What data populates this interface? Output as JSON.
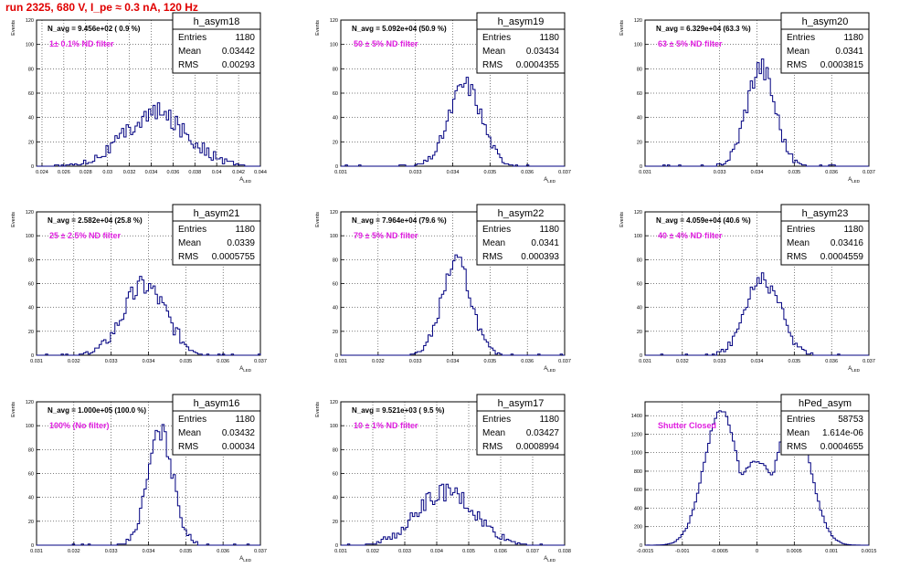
{
  "page": {
    "title": "run 2325,   680 V, I_pe ≈ 0.3 nA, 120 Hz"
  },
  "colors": {
    "title": "#e00000",
    "filter": "#e020e0",
    "histogram": "#000080",
    "grid": "#000000"
  },
  "chart_data": [
    {
      "type": "histogram",
      "name": "h_asym18",
      "xlabel": "A_LED",
      "ylabel": "Events",
      "xlim": [
        0.0235,
        0.044
      ],
      "ylim": [
        0,
        120
      ],
      "xticks": [
        "0.024",
        "0.026",
        "0.028",
        "0.03",
        "0.032",
        "0.034",
        "0.036",
        "0.038",
        "0.04",
        "0.042",
        "0.044"
      ],
      "xtick_values": [
        0.024,
        0.026,
        0.028,
        0.03,
        0.032,
        0.034,
        0.036,
        0.038,
        0.04,
        0.042,
        0.044
      ],
      "yticks": [
        "0",
        "20",
        "40",
        "60",
        "80",
        "100",
        "120"
      ],
      "navg_text": "N_avg = 9.456e+02 ( 0.9 %)",
      "filter_text": "1± 0.1% ND filter",
      "stats": {
        "entries_label": "Entries",
        "entries": "1180",
        "mean_label": "Mean",
        "mean": "0.03442",
        "rms_label": "RMS",
        "rms": "0.00293"
      },
      "shape": {
        "kind": "gauss",
        "peak": 43,
        "mu": 0.03442,
        "sigma": 0.00293,
        "noise": 9,
        "bins": 100
      },
      "grid": true
    },
    {
      "type": "histogram",
      "name": "h_asym19",
      "xlabel": "A_LED",
      "ylabel": "Events",
      "xlim": [
        0.031,
        0.037
      ],
      "ylim": [
        0,
        120
      ],
      "xticks": [
        "0.031",
        "0.033",
        "0.034",
        "0.035",
        "0.036",
        "0.037"
      ],
      "xtick_values": [
        0.031,
        0.033,
        0.034,
        0.035,
        0.036,
        0.037
      ],
      "yticks": [
        "0",
        "20",
        "40",
        "60",
        "80",
        "100",
        "120"
      ],
      "navg_text": "N_avg = 5.092e+04 (50.9 %)",
      "filter_text": "50 ± 5% ND filter",
      "stats": {
        "entries_label": "Entries",
        "entries": "1180",
        "mean_label": "Mean",
        "mean": "0.03434",
        "rms_label": "RMS",
        "rms": "0.0004355"
      },
      "shape": {
        "kind": "gauss",
        "peak": 67,
        "mu": 0.03434,
        "sigma": 0.0004355,
        "noise": 8,
        "bins": 100
      },
      "grid": true
    },
    {
      "type": "histogram",
      "name": "h_asym20",
      "xlabel": "A_LED",
      "ylabel": "Events",
      "xlim": [
        0.031,
        0.037
      ],
      "ylim": [
        0,
        120
      ],
      "xticks": [
        "0.031",
        "0.033",
        "0.034",
        "0.035",
        "0.036",
        "0.037"
      ],
      "xtick_values": [
        0.031,
        0.033,
        0.034,
        0.035,
        0.036,
        0.037
      ],
      "yticks": [
        "0",
        "20",
        "40",
        "60",
        "80",
        "100",
        "120"
      ],
      "navg_text": "N_avg = 6.329e+04 (63.3 %)",
      "filter_text": "63 ± 5% ND filter",
      "stats": {
        "entries_label": "Entries",
        "entries": "1180",
        "mean_label": "Mean",
        "mean": "0.0341",
        "rms_label": "RMS",
        "rms": "0.0003815"
      },
      "shape": {
        "kind": "gauss",
        "peak": 82,
        "mu": 0.0341,
        "sigma": 0.0003815,
        "noise": 10,
        "bins": 100
      },
      "grid": true
    },
    {
      "type": "histogram",
      "name": "h_asym21",
      "xlabel": "A_LED",
      "ylabel": "Events",
      "xlim": [
        0.031,
        0.037
      ],
      "ylim": [
        0,
        120
      ],
      "xticks": [
        "0.031",
        "0.032",
        "0.033",
        "0.034",
        "0.035",
        "0.036",
        "0.037"
      ],
      "xtick_values": [
        0.031,
        0.032,
        0.033,
        0.034,
        0.035,
        0.036,
        0.037
      ],
      "yticks": [
        "0",
        "20",
        "40",
        "60",
        "80",
        "100",
        "120"
      ],
      "navg_text": "N_avg = 2.582e+04 (25.8 %)",
      "filter_text": "25 ± 2.5% ND filter",
      "stats": {
        "entries_label": "Entries",
        "entries": "1180",
        "mean_label": "Mean",
        "mean": "0.0339",
        "rms_label": "RMS",
        "rms": "0.0005755"
      },
      "shape": {
        "kind": "gauss",
        "peak": 58,
        "mu": 0.0339,
        "sigma": 0.0005755,
        "noise": 10,
        "bins": 100
      },
      "grid": true
    },
    {
      "type": "histogram",
      "name": "h_asym22",
      "xlabel": "A_LED",
      "ylabel": "Events",
      "xlim": [
        0.031,
        0.037
      ],
      "ylim": [
        0,
        120
      ],
      "xticks": [
        "0.031",
        "0.032",
        "0.033",
        "0.034",
        "0.035",
        "0.036",
        "0.037"
      ],
      "xtick_values": [
        0.031,
        0.032,
        0.033,
        0.034,
        0.035,
        0.036,
        0.037
      ],
      "yticks": [
        "0",
        "20",
        "40",
        "60",
        "80",
        "100",
        "120"
      ],
      "navg_text": "N_avg = 7.964e+04 (79.6 %)",
      "filter_text": "79 ± 5% ND filter",
      "stats": {
        "entries_label": "Entries",
        "entries": "1180",
        "mean_label": "Mean",
        "mean": "0.0341",
        "rms_label": "RMS",
        "rms": "0.000393"
      },
      "shape": {
        "kind": "gauss",
        "peak": 78,
        "mu": 0.0341,
        "sigma": 0.000393,
        "noise": 8,
        "bins": 100
      },
      "grid": true
    },
    {
      "type": "histogram",
      "name": "h_asym23",
      "xlabel": "A_LED",
      "ylabel": "Events",
      "xlim": [
        0.031,
        0.037
      ],
      "ylim": [
        0,
        120
      ],
      "xticks": [
        "0.031",
        "0.032",
        "0.033",
        "0.034",
        "0.035",
        "0.036",
        "0.037"
      ],
      "xtick_values": [
        0.031,
        0.032,
        0.033,
        0.034,
        0.035,
        0.036,
        0.037
      ],
      "yticks": [
        "0",
        "20",
        "40",
        "60",
        "80",
        "100",
        "120"
      ],
      "navg_text": "N_avg = 4.059e+04 (40.6 %)",
      "filter_text": "40 ± 4% ND filter",
      "stats": {
        "entries_label": "Entries",
        "entries": "1180",
        "mean_label": "Mean",
        "mean": "0.03416",
        "rms_label": "RMS",
        "rms": "0.0004559"
      },
      "shape": {
        "kind": "gauss",
        "peak": 65,
        "mu": 0.03416,
        "sigma": 0.0004559,
        "noise": 9,
        "bins": 100
      },
      "grid": true
    },
    {
      "type": "histogram",
      "name": "h_asym16",
      "xlabel": "A_LED",
      "ylabel": "Events",
      "xlim": [
        0.031,
        0.037
      ],
      "ylim": [
        0,
        120
      ],
      "xticks": [
        "0.031",
        "0.032",
        "0.033",
        "0.034",
        "0.035",
        "0.036",
        "0.037"
      ],
      "xtick_values": [
        0.031,
        0.032,
        0.033,
        0.034,
        0.035,
        0.036,
        0.037
      ],
      "yticks": [
        "0",
        "20",
        "40",
        "60",
        "80",
        "100",
        "120"
      ],
      "navg_text": "N_avg = 1.000e+05 (100.0 %)",
      "filter_text": "100% (No filter)",
      "stats": {
        "entries_label": "Entries",
        "entries": "1180",
        "mean_label": "Mean",
        "mean": "0.03432",
        "rms_label": "RMS",
        "rms": "0.00034"
      },
      "shape": {
        "kind": "gauss",
        "peak": 95,
        "mu": 0.03432,
        "sigma": 0.00034,
        "noise": 9,
        "bins": 100
      },
      "grid": true
    },
    {
      "type": "histogram",
      "name": "h_asym17",
      "xlabel": "A_LED",
      "ylabel": "Events",
      "xlim": [
        0.031,
        0.038
      ],
      "ylim": [
        0,
        120
      ],
      "xticks": [
        "0.031",
        "0.032",
        "0.033",
        "0.034",
        "0.035",
        "0.036",
        "0.037",
        "0.038"
      ],
      "xtick_values": [
        0.031,
        0.032,
        0.033,
        0.034,
        0.035,
        0.036,
        0.037,
        0.038
      ],
      "yticks": [
        "0",
        "20",
        "40",
        "60",
        "80",
        "100",
        "120"
      ],
      "navg_text": "N_avg = 9.521e+03 ( 9.5 %)",
      "filter_text": "10 ± 1% ND filter",
      "stats": {
        "entries_label": "Entries",
        "entries": "1180",
        "mean_label": "Mean",
        "mean": "0.03427",
        "rms_label": "RMS",
        "rms": "0.0008994"
      },
      "shape": {
        "kind": "gauss",
        "peak": 44,
        "mu": 0.03427,
        "sigma": 0.0008994,
        "noise": 8,
        "bins": 100
      },
      "grid": true
    },
    {
      "type": "histogram",
      "name": "hPed_asym",
      "xlabel": "",
      "ylabel": "",
      "xlim": [
        -0.0015,
        0.0015
      ],
      "ylim": [
        0,
        1550
      ],
      "xticks": [
        "-0.0015",
        "-0.001",
        "-0.0005",
        "0",
        "0.0005",
        "0.001",
        "0.0015"
      ],
      "xtick_values": [
        -0.0015,
        -0.001,
        -0.0005,
        0,
        0.0005,
        0.001,
        0.0015
      ],
      "yticks": [
        "0",
        "200",
        "400",
        "600",
        "800",
        "1000",
        "1200",
        "1400"
      ],
      "navg_text": "",
      "filter_text": "Shutter Closed",
      "stats": {
        "entries_label": "Entries",
        "entries": "58753",
        "mean_label": "Mean",
        "mean": "1.614e-06",
        "rms_label": "RMS",
        "rms": "0.0004655"
      },
      "shape": {
        "kind": "double",
        "peak": 1450,
        "mu1": -0.00048,
        "mu2": 0.00048,
        "sigma": 0.00023,
        "dip": 900,
        "noise": 25,
        "bins": 100
      },
      "grid": true
    }
  ]
}
